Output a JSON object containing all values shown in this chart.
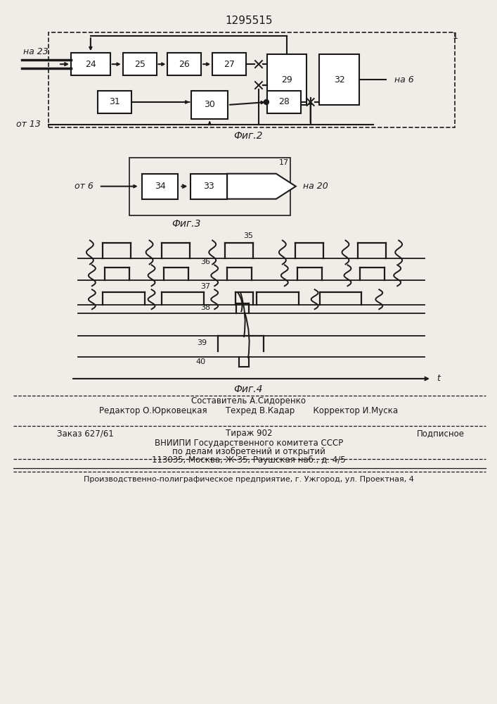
{
  "title": "1295515",
  "fig2_label": "Фиг.2",
  "fig3_label": "Фиг.3",
  "fig4_label": "Фиг.4",
  "bg_color": "#f0ede8",
  "line_color": "#1a1a1a",
  "box_color": "#ffffff",
  "fig2_blocks": [
    "24",
    "25",
    "26",
    "27",
    "29",
    "31",
    "30",
    "28",
    "32"
  ],
  "fig3_blocks": [
    "34",
    "33"
  ],
  "label_na23": "на 23",
  "label_ot13": "от 13",
  "label_na6": "на 6",
  "label_ot6": "от 6",
  "label_na20": "на 20",
  "label_17": "17",
  "label_1": "1",
  "footer_sostavitel": "Составитель А.Сидоренко",
  "footer_redaktor": "Редактор О.Юрковецкая",
  "footer_tehred": "Техред В.Кадар",
  "footer_korrektor": "Корректор И.Муска",
  "footer_zakaz": "Заказ 627/61",
  "footer_tirazh": "Тираж 902",
  "footer_podpisnoe": "Подписное",
  "footer_vniipи": "ВНИИПИ Государственного комитета СССР",
  "footer_podel": "по делам изобретений и открытий",
  "footer_addr": "113035, Москва, Ж-35, Раушская наб., д. 4/5",
  "footer_pred": "Производственно-полиграфическое предприятие, г. Ужгород, ул. Проектная, 4"
}
